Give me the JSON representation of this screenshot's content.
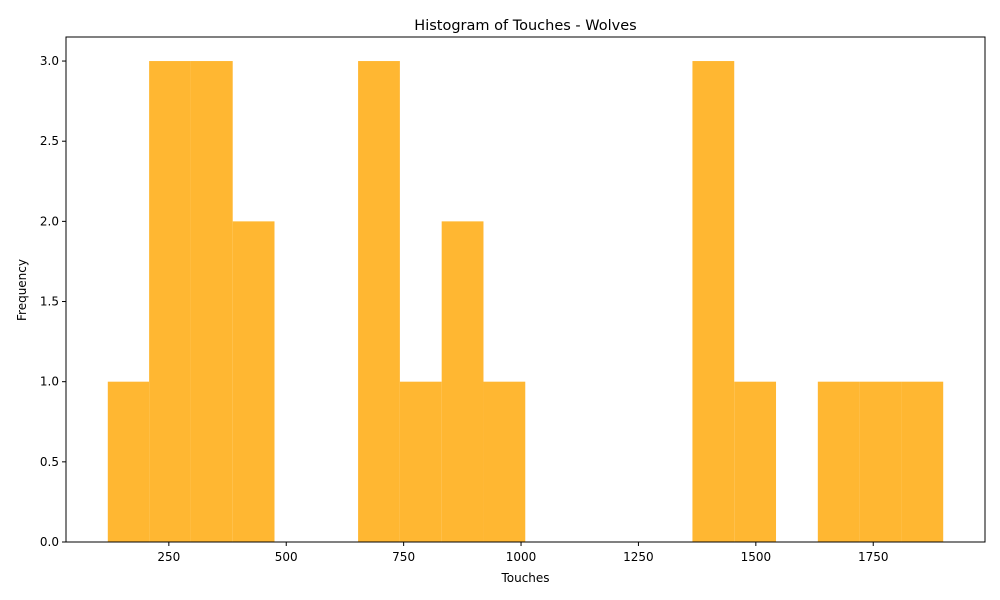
{
  "chart_data": {
    "type": "bar",
    "title": "Histogram of Touches - Wolves",
    "xlabel": "Touches",
    "ylabel": "Frequency",
    "bar_color": "#FFB732",
    "bins": [
      {
        "start": 120,
        "end": 208,
        "count": 1
      },
      {
        "start": 208,
        "end": 297,
        "count": 3
      },
      {
        "start": 297,
        "end": 386,
        "count": 3
      },
      {
        "start": 386,
        "end": 475,
        "count": 2
      },
      {
        "start": 475,
        "end": 564,
        "count": 0
      },
      {
        "start": 564,
        "end": 653,
        "count": 0
      },
      {
        "start": 653,
        "end": 742,
        "count": 3
      },
      {
        "start": 742,
        "end": 831,
        "count": 1
      },
      {
        "start": 831,
        "end": 920,
        "count": 2
      },
      {
        "start": 920,
        "end": 1009,
        "count": 1
      },
      {
        "start": 1009,
        "end": 1098,
        "count": 0
      },
      {
        "start": 1098,
        "end": 1187,
        "count": 0
      },
      {
        "start": 1187,
        "end": 1276,
        "count": 0
      },
      {
        "start": 1276,
        "end": 1365,
        "count": 0
      },
      {
        "start": 1365,
        "end": 1454,
        "count": 3
      },
      {
        "start": 1454,
        "end": 1543,
        "count": 1
      },
      {
        "start": 1543,
        "end": 1632,
        "count": 0
      },
      {
        "start": 1632,
        "end": 1721,
        "count": 1
      },
      {
        "start": 1721,
        "end": 1810,
        "count": 1
      },
      {
        "start": 1810,
        "end": 1899,
        "count": 1
      }
    ],
    "xlim": [
      31,
      1988
    ],
    "ylim": [
      0,
      3.15
    ],
    "x_ticks": [
      250,
      500,
      750,
      1000,
      1250,
      1500,
      1750
    ],
    "x_tick_labels": [
      "250",
      "500",
      "750",
      "1000",
      "1250",
      "1500",
      "1750"
    ],
    "y_ticks": [
      0,
      0.5,
      1.0,
      1.5,
      2.0,
      2.5,
      3.0
    ],
    "y_tick_labels": [
      "0.0",
      "0.5",
      "1.0",
      "1.5",
      "2.0",
      "2.5",
      "3.0"
    ],
    "grid": false,
    "legend": "none"
  }
}
